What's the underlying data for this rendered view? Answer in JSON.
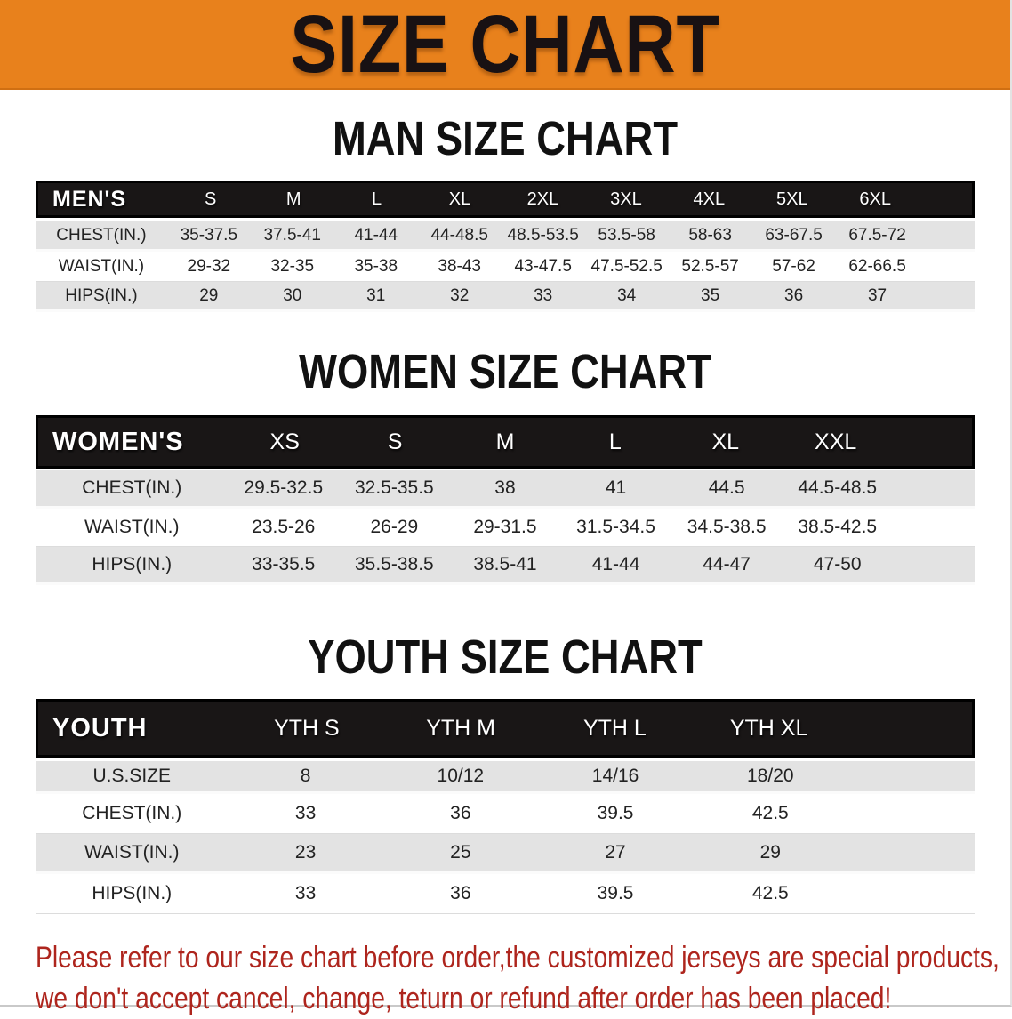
{
  "banner": {
    "title": "SIZE CHART",
    "bg_color": "#e8811c",
    "text_color": "#181113"
  },
  "sections": {
    "men": {
      "heading": "MAN SIZE CHART",
      "table": {
        "header": {
          "label": "MEN'S",
          "sizes": [
            "S",
            "M",
            "L",
            "XL",
            "2XL",
            "3XL",
            "4XL",
            "5XL",
            "6XL"
          ]
        },
        "rows": [
          {
            "label": "CHEST(IN.)",
            "values": [
              "35-37.5",
              "37.5-41",
              "41-44",
              "44-48.5",
              "48.5-53.5",
              "53.5-58",
              "58-63",
              "63-67.5",
              "67.5-72"
            ]
          },
          {
            "label": "WAIST(IN.)",
            "values": [
              "29-32",
              "32-35",
              "35-38",
              "38-43",
              "43-47.5",
              "47.5-52.5",
              "52.5-57",
              "57-62",
              "62-66.5"
            ]
          },
          {
            "label": "HIPS(IN.)",
            "values": [
              "29",
              "30",
              "31",
              "32",
              "33",
              "34",
              "35",
              "36",
              "37"
            ]
          }
        ]
      }
    },
    "women": {
      "heading": "WOMEN SIZE CHART",
      "table": {
        "header": {
          "label": "WOMEN'S",
          "sizes": [
            "XS",
            "S",
            "M",
            "L",
            "XL",
            "XXL"
          ]
        },
        "rows": [
          {
            "label": "CHEST(IN.)",
            "values": [
              "29.5-32.5",
              "32.5-35.5",
              "38",
              "41",
              "44.5",
              "44.5-48.5"
            ]
          },
          {
            "label": "WAIST(IN.)",
            "values": [
              "23.5-26",
              "26-29",
              "29-31.5",
              "31.5-34.5",
              "34.5-38.5",
              "38.5-42.5"
            ]
          },
          {
            "label": "HIPS(IN.)",
            "values": [
              "33-35.5",
              "35.5-38.5",
              "38.5-41",
              "41-44",
              "44-47",
              "47-50"
            ]
          }
        ]
      }
    },
    "youth": {
      "heading": "YOUTH SIZE CHART",
      "table": {
        "header": {
          "label": "YOUTH",
          "sizes": [
            "YTH S",
            "YTH M",
            "YTH L",
            "YTH XL"
          ]
        },
        "rows": [
          {
            "label": "U.S.SIZE",
            "values": [
              "8",
              "10/12",
              "14/16",
              "18/20"
            ]
          },
          {
            "label": "CHEST(IN.)",
            "values": [
              "33",
              "36",
              "39.5",
              "42.5"
            ]
          },
          {
            "label": "WAIST(IN.)",
            "values": [
              "23",
              "25",
              "27",
              "29"
            ]
          },
          {
            "label": "HIPS(IN.)",
            "values": [
              "33",
              "36",
              "39.5",
              "42.5"
            ]
          }
        ]
      }
    }
  },
  "note": {
    "line1": "Please refer to our size chart before order,the customized jerseys are special products,",
    "line2": "we don't accept cancel, change, teturn or refund after order has been placed!",
    "color": "#ae251d"
  },
  "colors": {
    "banner_bg": "#e8811c",
    "table_header_bg": "#191616",
    "row_gray": "#e3e3e3",
    "row_white": "#ffffff"
  }
}
